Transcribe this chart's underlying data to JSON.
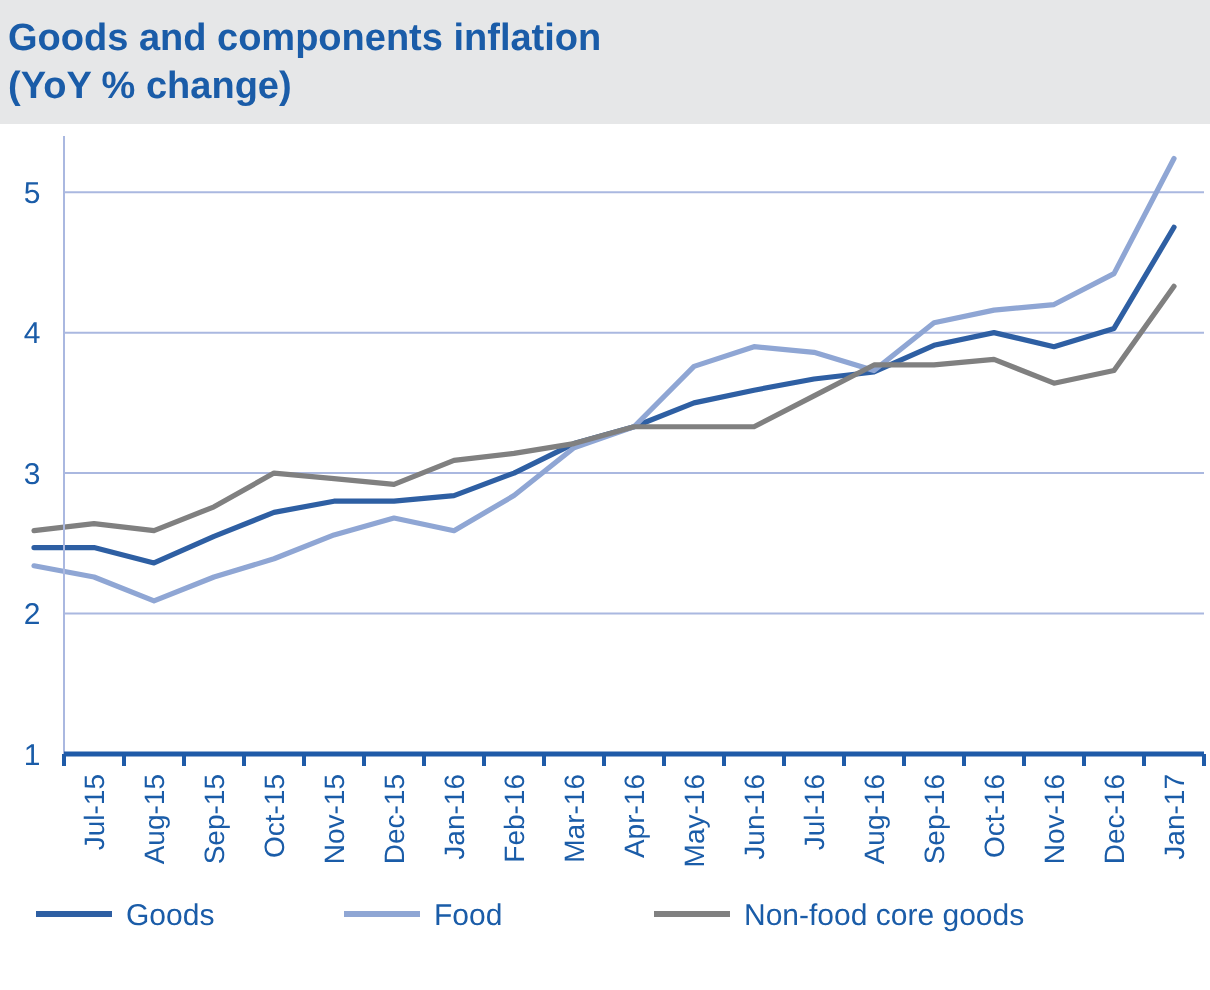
{
  "chart_data": {
    "type": "line",
    "title": "Goods and components inflation\n(YoY % change)",
    "categories": [
      null,
      "Jul-15",
      "Aug-15",
      "Sep-15",
      "Oct-15",
      "Nov-15",
      "Dec-15",
      "Jan-16",
      "Feb-16",
      "Mar-16",
      "Apr-16",
      "May-16",
      "Jun-16",
      "Jul-16",
      "Aug-16",
      "Sep-16",
      "Oct-16",
      "Nov-16",
      "Dec-16",
      "Jan-17"
    ],
    "series": [
      {
        "name": "Goods",
        "color": "#2e5fa3",
        "values": [
          2.47,
          2.47,
          2.36,
          2.55,
          2.72,
          2.8,
          2.8,
          2.84,
          3.0,
          3.21,
          3.33,
          3.5,
          3.59,
          3.67,
          3.72,
          3.91,
          4.0,
          3.9,
          4.03,
          4.75
        ]
      },
      {
        "name": "Food",
        "color": "#8fa6d4",
        "values": [
          2.34,
          2.26,
          2.09,
          2.26,
          2.39,
          2.56,
          2.68,
          2.59,
          2.84,
          3.18,
          3.33,
          3.76,
          3.9,
          3.86,
          3.73,
          4.07,
          4.16,
          4.2,
          4.42,
          5.24
        ]
      },
      {
        "name": "Non-food core goods",
        "color": "#808080",
        "values": [
          2.59,
          2.64,
          2.59,
          2.76,
          3.0,
          2.96,
          2.92,
          3.09,
          3.14,
          3.21,
          3.33,
          3.33,
          3.33,
          3.55,
          3.77,
          3.77,
          3.81,
          3.64,
          3.73,
          4.33
        ]
      }
    ],
    "ylim": [
      1,
      5.4
    ],
    "yticks": [
      1,
      2,
      3,
      4,
      5
    ],
    "grid": "y",
    "legend": "bottom"
  }
}
